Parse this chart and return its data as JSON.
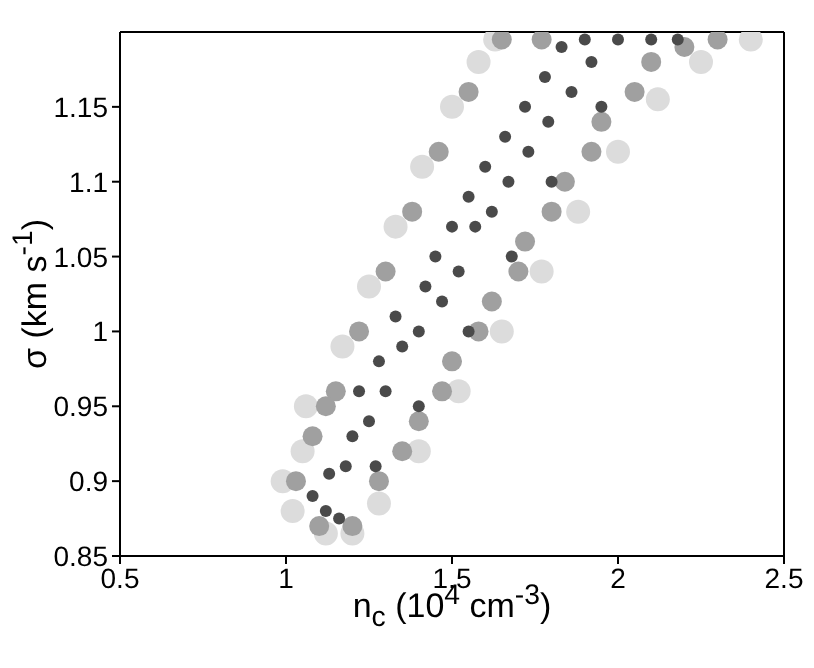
{
  "chart_data": {
    "type": "scatter",
    "xlabel": "n$_{c}$ (10$^{4}$ cm$^{-3}$)",
    "ylabel": "σ (km s$^{-1}$)",
    "xlim": [
      0.5,
      2.5
    ],
    "xticks": [
      0.5,
      1,
      1.5,
      2,
      2.5
    ],
    "ylim": [
      0.85,
      1.2
    ],
    "yticks": [
      0.85,
      0.9,
      0.95,
      1,
      1.05,
      1.1,
      1.15
    ],
    "marker": "circle",
    "series": [
      {
        "color": "#dcdcdc",
        "x": [
          0.99,
          1.02,
          1.05,
          1.06,
          1.17,
          1.25,
          1.33,
          1.41,
          1.5,
          1.58,
          1.63,
          1.12,
          1.2,
          1.28,
          1.4,
          1.52,
          1.65,
          1.77,
          1.88,
          2.0,
          2.12,
          2.25,
          2.4
        ],
        "values": [
          0.9,
          0.88,
          0.92,
          0.95,
          0.99,
          1.03,
          1.07,
          1.11,
          1.15,
          1.18,
          1.195,
          0.865,
          0.865,
          0.885,
          0.92,
          0.96,
          1.0,
          1.04,
          1.08,
          1.12,
          1.155,
          1.18,
          1.195
        ]
      },
      {
        "color": "#a0a0a0",
        "x": [
          1.03,
          1.08,
          1.15,
          1.22,
          1.3,
          1.38,
          1.46,
          1.55,
          1.65,
          1.2,
          1.28,
          1.4,
          1.5,
          1.62,
          1.72,
          1.84,
          1.95,
          2.1,
          2.3,
          1.1,
          1.12,
          1.35,
          1.47,
          1.58,
          1.7,
          1.8,
          1.92,
          2.05,
          2.2,
          1.77
        ],
        "values": [
          0.9,
          0.93,
          0.96,
          1.0,
          1.04,
          1.08,
          1.12,
          1.16,
          1.195,
          0.87,
          0.9,
          0.94,
          0.98,
          1.02,
          1.06,
          1.1,
          1.14,
          1.18,
          1.195,
          0.87,
          0.95,
          0.92,
          0.96,
          1.0,
          1.04,
          1.08,
          1.12,
          1.16,
          1.19,
          1.195
        ]
      },
      {
        "color": "#4a4a4a",
        "x": [
          1.08,
          1.12,
          1.16,
          1.13,
          1.18,
          1.2,
          1.25,
          1.22,
          1.3,
          1.28,
          1.35,
          1.33,
          1.4,
          1.42,
          1.47,
          1.45,
          1.52,
          1.5,
          1.57,
          1.55,
          1.62,
          1.6,
          1.67,
          1.66,
          1.73,
          1.72,
          1.79,
          1.78,
          1.86,
          1.83,
          1.92,
          1.9,
          2.0,
          2.1,
          2.18,
          1.95,
          1.8,
          1.68,
          1.55,
          1.4,
          1.27
        ],
        "values": [
          0.89,
          0.88,
          0.875,
          0.905,
          0.91,
          0.93,
          0.94,
          0.96,
          0.96,
          0.98,
          0.99,
          1.01,
          1.0,
          1.03,
          1.02,
          1.05,
          1.04,
          1.07,
          1.07,
          1.09,
          1.08,
          1.11,
          1.1,
          1.13,
          1.12,
          1.15,
          1.14,
          1.17,
          1.16,
          1.19,
          1.18,
          1.195,
          1.195,
          1.195,
          1.195,
          1.15,
          1.1,
          1.05,
          1.0,
          0.95,
          0.91
        ]
      }
    ]
  }
}
